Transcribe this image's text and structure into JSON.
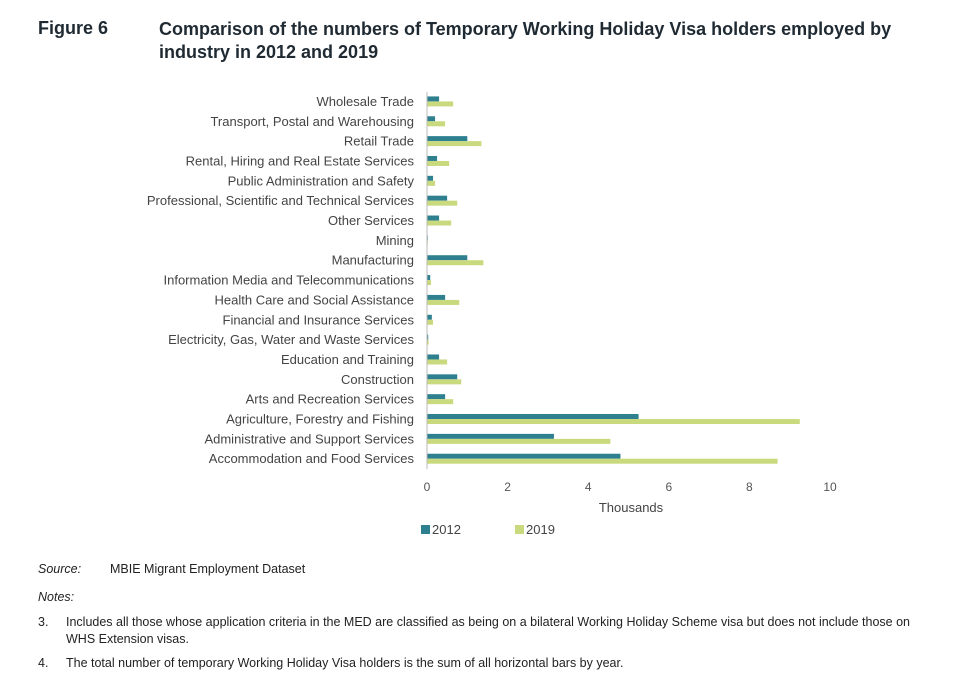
{
  "figure": {
    "label": "Figure 6",
    "title": "Comparison of the numbers of Temporary Working Holiday Visa holders employed by industry in 2012 and 2019"
  },
  "chart_data": {
    "type": "bar",
    "orientation": "horizontal",
    "categories": [
      "Wholesale Trade",
      "Transport, Postal and Warehousing",
      "Retail Trade",
      "Rental, Hiring and Real Estate Services",
      "Public Administration and Safety",
      "Professional, Scientific and Technical Services",
      "Other Services",
      "Mining",
      "Manufacturing",
      "Information Media and Telecommunications",
      "Health Care and Social Assistance",
      "Financial and Insurance Services",
      "Electricity, Gas, Water and Waste Services",
      "Education and Training",
      "Construction",
      "Arts and Recreation Services",
      "Agriculture, Forestry and Fishing",
      "Administrative and Support Services",
      "Accommodation and Food Services"
    ],
    "series": [
      {
        "name": "2012",
        "color": "#2e8090",
        "values": [
          0.3,
          0.2,
          1.0,
          0.25,
          0.15,
          0.5,
          0.3,
          0.02,
          1.0,
          0.08,
          0.45,
          0.12,
          0.03,
          0.3,
          0.75,
          0.45,
          5.25,
          3.15,
          4.8
        ]
      },
      {
        "name": "2019",
        "color": "#c9d97e",
        "values": [
          0.65,
          0.45,
          1.35,
          0.55,
          0.2,
          0.75,
          0.6,
          0.02,
          1.4,
          0.1,
          0.8,
          0.15,
          0.04,
          0.5,
          0.85,
          0.65,
          9.25,
          4.55,
          8.7
        ]
      }
    ],
    "xlabel": "Thousands",
    "xlim": [
      0,
      10
    ],
    "xticks": [
      "0",
      "2",
      "4",
      "6",
      "8",
      "10"
    ],
    "grid": false,
    "legend": "bottom"
  },
  "source": {
    "label": "Source:",
    "text": "MBIE Migrant Employment Dataset"
  },
  "notes": {
    "heading": "Notes:",
    "items": [
      {
        "num": "3.",
        "text": "Includes all those whose application criteria in the MED are classified as being on a bilateral Working Holiday Scheme visa but does not include those on WHS Extension visas."
      },
      {
        "num": "4.",
        "text": "The total number of temporary Working Holiday Visa holders is the sum of all horizontal bars by year."
      }
    ]
  }
}
